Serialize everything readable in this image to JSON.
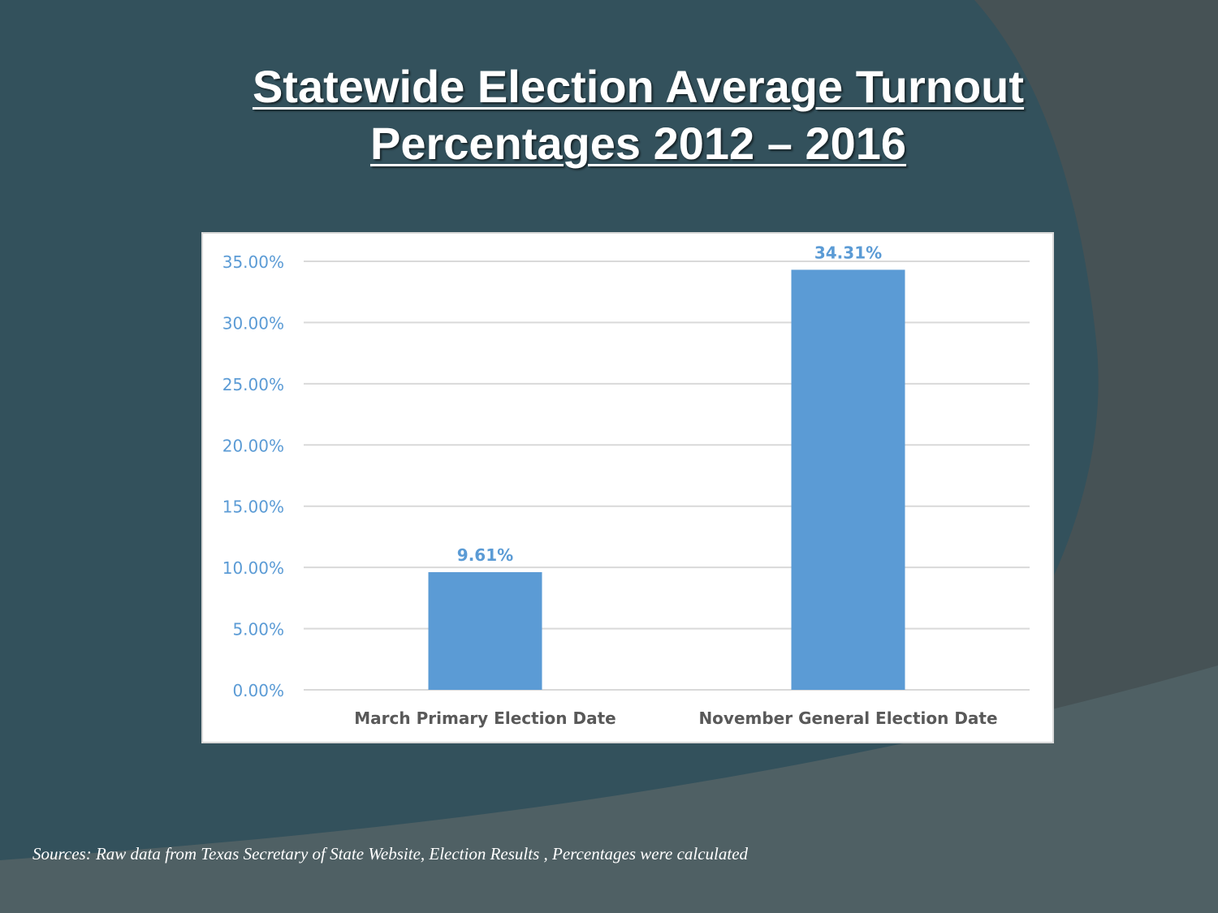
{
  "slide": {
    "title_line1": "Statewide Election Average Turnout",
    "title_line2": "Percentages 2012 – 2016",
    "source": "Sources: Raw data from Texas Secretary of State Website, Election Results , Percentages were calculated"
  },
  "colors": {
    "background": "#33515c",
    "bar": "#5b9bd5",
    "axis_text": "#5b9bd5",
    "category_text": "#595959",
    "gridline": "#d9d9d9"
  },
  "chart_data": {
    "type": "bar",
    "categories": [
      "March Primary Election Date",
      "November General Election Date"
    ],
    "values": [
      9.61,
      34.31
    ],
    "data_labels": [
      "9.61%",
      "34.31%"
    ],
    "ylim": [
      0,
      35
    ],
    "yticks": [
      0,
      5,
      10,
      15,
      20,
      25,
      30,
      35
    ],
    "ytick_labels": [
      "0.00%",
      "5.00%",
      "10.00%",
      "15.00%",
      "20.00%",
      "25.00%",
      "30.00%",
      "35.00%"
    ],
    "grid": true,
    "legend": "none"
  }
}
